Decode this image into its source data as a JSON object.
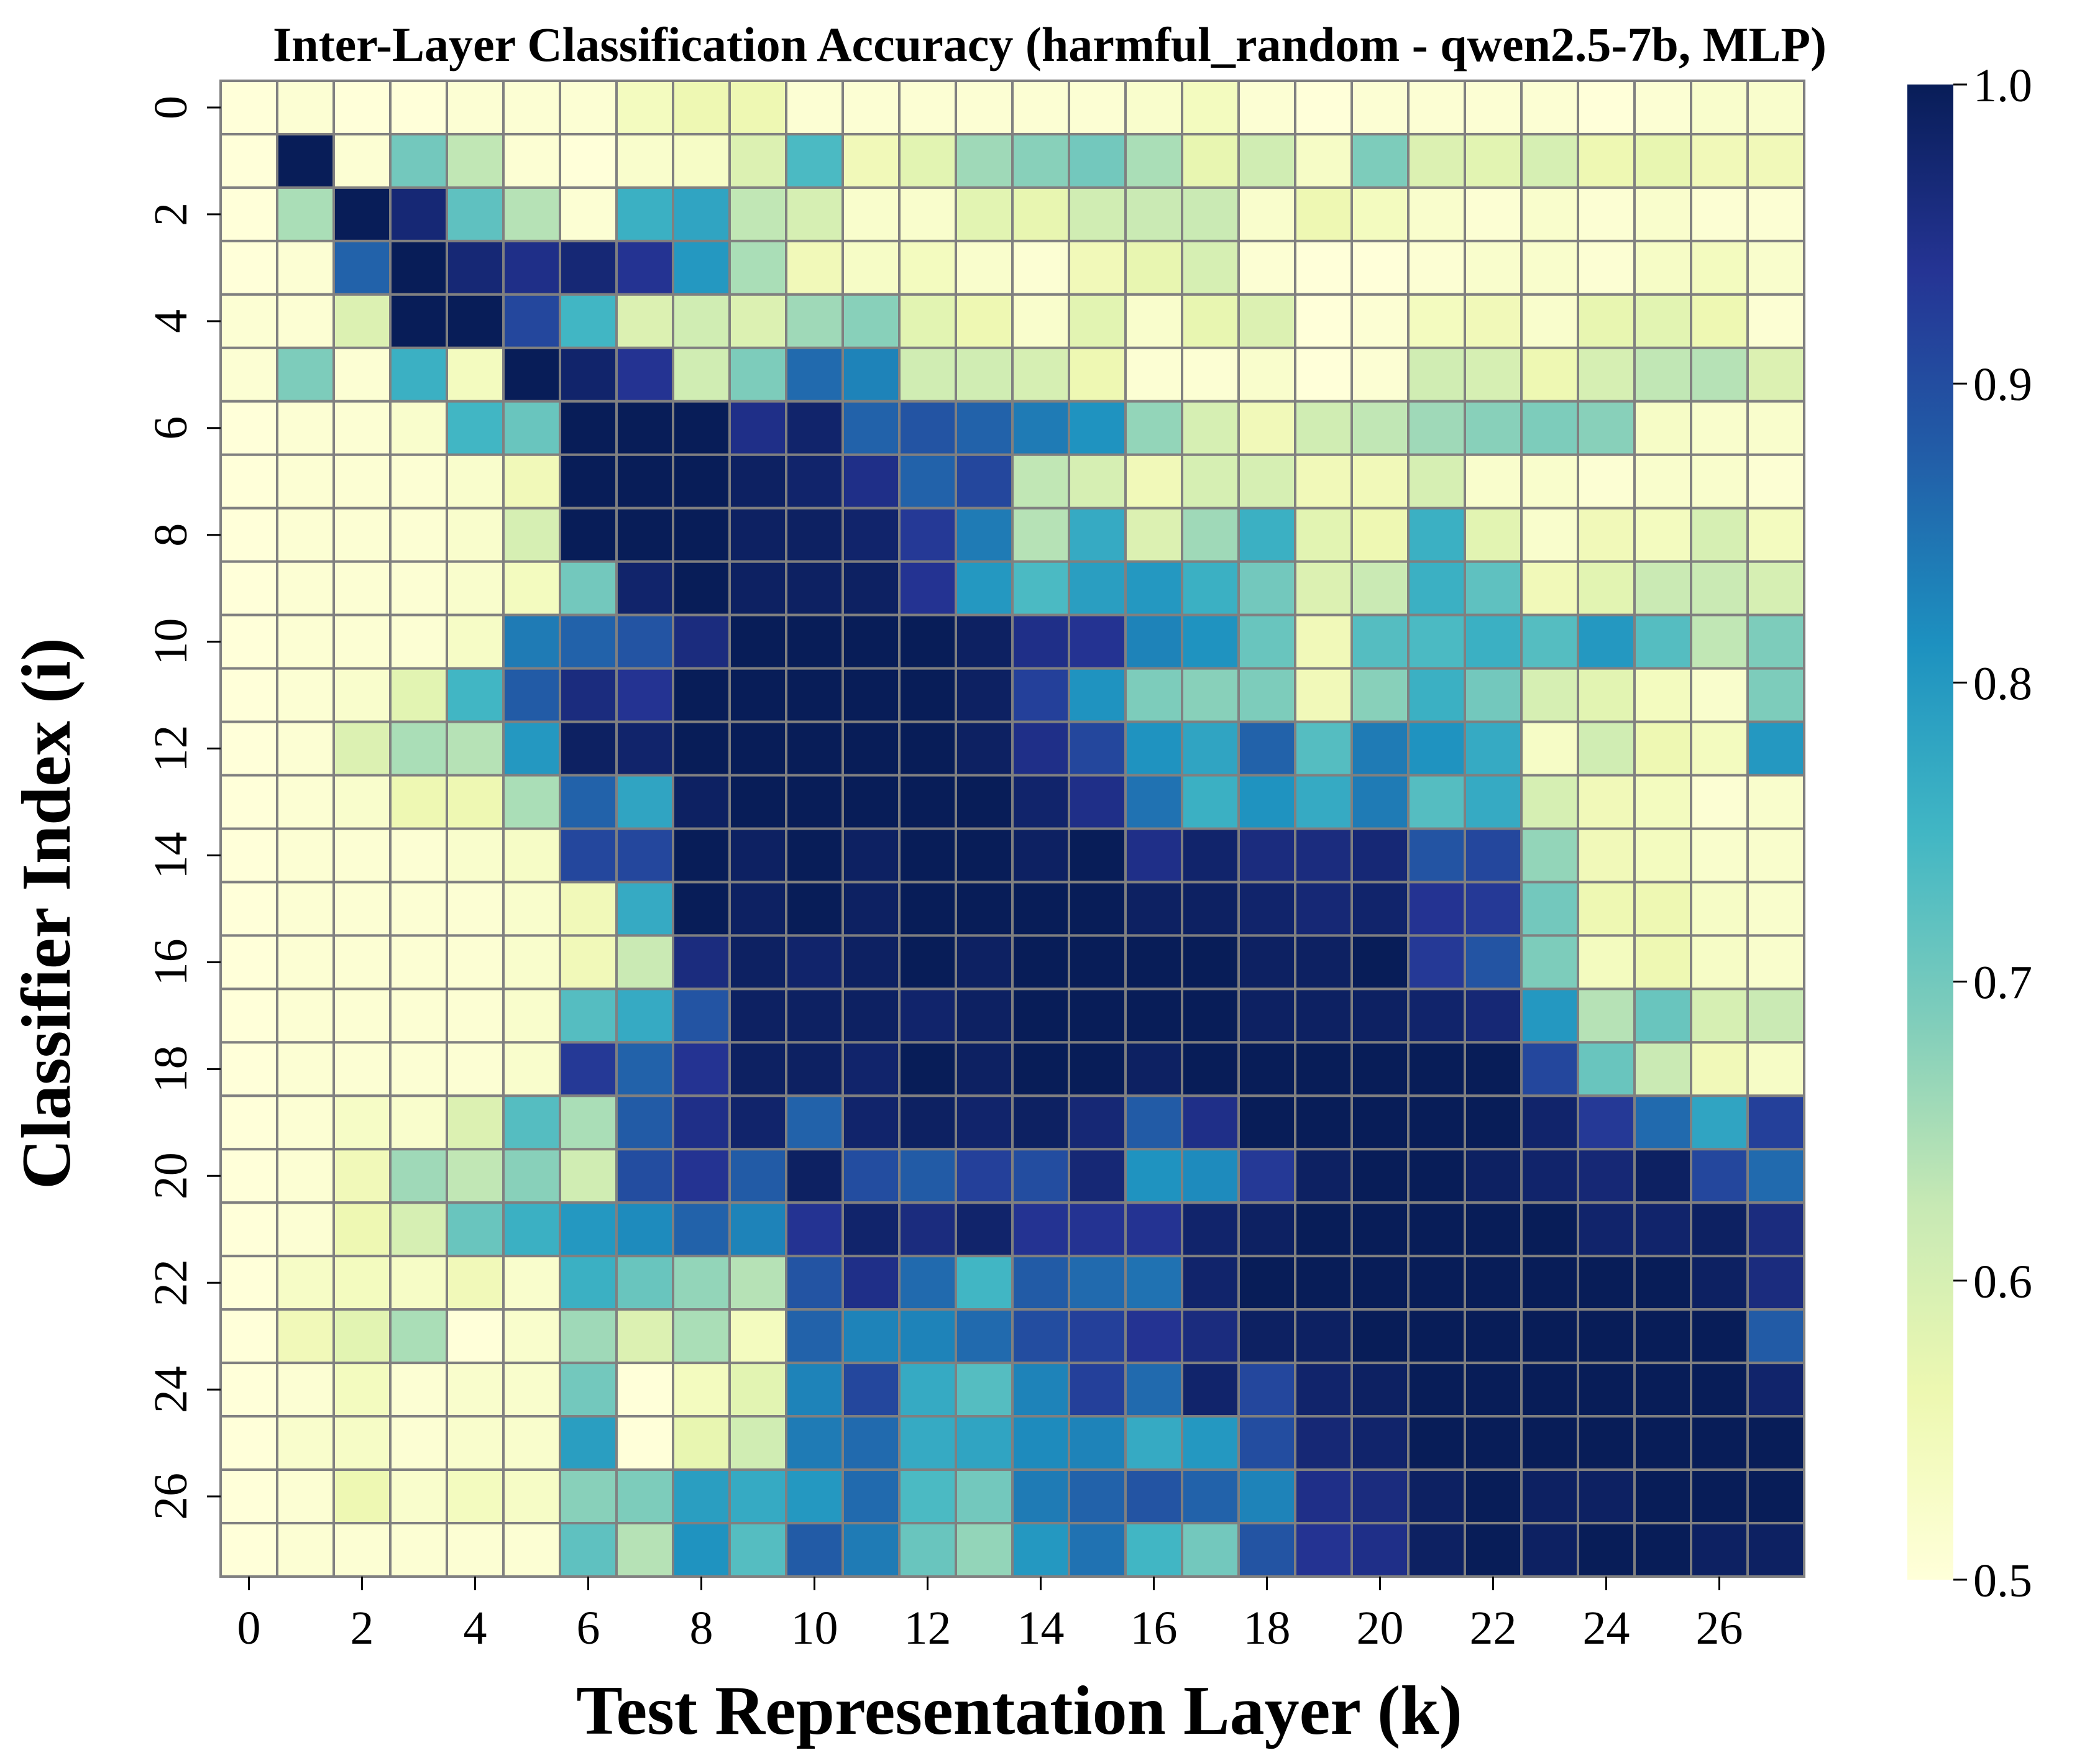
{
  "chart_data": {
    "type": "heatmap",
    "title": "Inter-Layer Classification Accuracy (harmful_random - qwen2.5-7b, MLP)",
    "xlabel": "Test Representation Layer (k)",
    "ylabel": "Classifier Index (i)",
    "x_tick_labels": [
      "0",
      "2",
      "4",
      "6",
      "8",
      "10",
      "12",
      "14",
      "16",
      "18",
      "20",
      "22",
      "24",
      "26"
    ],
    "y_tick_labels": [
      "0",
      "2",
      "4",
      "6",
      "8",
      "10",
      "12",
      "14",
      "16",
      "18",
      "20",
      "22",
      "24",
      "26"
    ],
    "colorbar": {
      "min": 0.5,
      "max": 1.0,
      "tick_labels": [
        "0.5",
        "0.6",
        "0.7",
        "0.8",
        "0.9",
        "1.0"
      ],
      "colormap": "YlGnBu"
    },
    "grid_line_color": "#808080",
    "values": [
      [
        0.5,
        0.51,
        0.5,
        0.5,
        0.51,
        0.51,
        0.51,
        0.54,
        0.56,
        0.56,
        0.51,
        0.51,
        0.51,
        0.51,
        0.51,
        0.51,
        0.52,
        0.54,
        0.51,
        0.5,
        0.51,
        0.51,
        0.51,
        0.51,
        0.5,
        0.51,
        0.52,
        0.52
      ],
      [
        0.5,
        1.0,
        0.51,
        0.7,
        0.63,
        0.51,
        0.5,
        0.52,
        0.53,
        0.59,
        0.74,
        0.55,
        0.58,
        0.66,
        0.68,
        0.7,
        0.65,
        0.57,
        0.61,
        0.53,
        0.69,
        0.59,
        0.58,
        0.6,
        0.56,
        0.57,
        0.55,
        0.55
      ],
      [
        0.5,
        0.65,
        1.0,
        0.97,
        0.72,
        0.64,
        0.51,
        0.76,
        0.78,
        0.63,
        0.6,
        0.52,
        0.52,
        0.58,
        0.57,
        0.61,
        0.62,
        0.62,
        0.52,
        0.56,
        0.54,
        0.52,
        0.51,
        0.52,
        0.51,
        0.52,
        0.51,
        0.51
      ],
      [
        0.5,
        0.51,
        0.87,
        1.0,
        0.97,
        0.95,
        0.97,
        0.94,
        0.8,
        0.65,
        0.55,
        0.53,
        0.54,
        0.52,
        0.51,
        0.55,
        0.57,
        0.6,
        0.51,
        0.5,
        0.5,
        0.51,
        0.52,
        0.52,
        0.51,
        0.53,
        0.54,
        0.52
      ],
      [
        0.51,
        0.51,
        0.59,
        1.0,
        1.0,
        0.91,
        0.75,
        0.59,
        0.61,
        0.59,
        0.66,
        0.68,
        0.58,
        0.56,
        0.52,
        0.58,
        0.52,
        0.57,
        0.59,
        0.5,
        0.51,
        0.54,
        0.55,
        0.52,
        0.57,
        0.58,
        0.56,
        0.51
      ],
      [
        0.51,
        0.69,
        0.51,
        0.76,
        0.54,
        1.0,
        0.98,
        0.94,
        0.61,
        0.69,
        0.86,
        0.83,
        0.61,
        0.61,
        0.6,
        0.56,
        0.51,
        0.51,
        0.52,
        0.5,
        0.51,
        0.61,
        0.6,
        0.56,
        0.6,
        0.63,
        0.64,
        0.59
      ],
      [
        0.5,
        0.51,
        0.51,
        0.52,
        0.75,
        0.71,
        1.0,
        1.0,
        1.0,
        0.95,
        0.98,
        0.87,
        0.89,
        0.87,
        0.84,
        0.81,
        0.67,
        0.6,
        0.55,
        0.61,
        0.63,
        0.66,
        0.68,
        0.69,
        0.68,
        0.53,
        0.52,
        0.52
      ],
      [
        0.5,
        0.51,
        0.51,
        0.51,
        0.52,
        0.55,
        1.0,
        1.0,
        1.0,
        0.99,
        0.98,
        0.95,
        0.87,
        0.91,
        0.63,
        0.6,
        0.55,
        0.6,
        0.6,
        0.55,
        0.55,
        0.6,
        0.52,
        0.52,
        0.51,
        0.52,
        0.52,
        0.51
      ],
      [
        0.5,
        0.51,
        0.51,
        0.51,
        0.52,
        0.6,
        1.0,
        1.0,
        1.0,
        0.99,
        0.99,
        0.98,
        0.93,
        0.84,
        0.64,
        0.77,
        0.59,
        0.66,
        0.76,
        0.58,
        0.56,
        0.76,
        0.58,
        0.52,
        0.55,
        0.54,
        0.6,
        0.54
      ],
      [
        0.5,
        0.51,
        0.51,
        0.51,
        0.52,
        0.54,
        0.7,
        0.98,
        1.0,
        0.99,
        0.99,
        0.99,
        0.94,
        0.8,
        0.74,
        0.79,
        0.8,
        0.76,
        0.7,
        0.59,
        0.62,
        0.76,
        0.72,
        0.55,
        0.58,
        0.62,
        0.62,
        0.6
      ],
      [
        0.5,
        0.51,
        0.51,
        0.51,
        0.53,
        0.84,
        0.87,
        0.89,
        0.96,
        1.0,
        1.0,
        1.0,
        1.0,
        0.99,
        0.95,
        0.94,
        0.83,
        0.81,
        0.71,
        0.55,
        0.73,
        0.74,
        0.76,
        0.73,
        0.8,
        0.73,
        0.63,
        0.69
      ],
      [
        0.5,
        0.51,
        0.52,
        0.58,
        0.75,
        0.88,
        0.96,
        0.94,
        1.0,
        1.0,
        1.0,
        1.0,
        1.0,
        0.99,
        0.92,
        0.81,
        0.69,
        0.68,
        0.69,
        0.55,
        0.68,
        0.76,
        0.7,
        0.6,
        0.58,
        0.54,
        0.52,
        0.69
      ],
      [
        0.5,
        0.51,
        0.59,
        0.65,
        0.64,
        0.8,
        0.99,
        0.98,
        1.0,
        1.0,
        1.0,
        1.0,
        1.0,
        0.99,
        0.95,
        0.91,
        0.81,
        0.78,
        0.87,
        0.73,
        0.84,
        0.81,
        0.77,
        0.53,
        0.61,
        0.56,
        0.54,
        0.8
      ],
      [
        0.5,
        0.51,
        0.52,
        0.56,
        0.56,
        0.65,
        0.87,
        0.78,
        0.99,
        1.0,
        1.0,
        1.0,
        1.0,
        1.0,
        0.98,
        0.95,
        0.85,
        0.76,
        0.81,
        0.77,
        0.84,
        0.73,
        0.77,
        0.6,
        0.55,
        0.54,
        0.51,
        0.52
      ],
      [
        0.5,
        0.51,
        0.51,
        0.51,
        0.52,
        0.53,
        0.91,
        0.91,
        1.0,
        0.99,
        1.0,
        0.99,
        1.0,
        1.0,
        0.99,
        1.0,
        0.95,
        0.98,
        0.96,
        0.96,
        0.97,
        0.89,
        0.91,
        0.67,
        0.55,
        0.54,
        0.52,
        0.52
      ],
      [
        0.5,
        0.51,
        0.51,
        0.51,
        0.51,
        0.52,
        0.55,
        0.77,
        1.0,
        0.99,
        1.0,
        0.99,
        1.0,
        1.0,
        1.0,
        1.0,
        0.99,
        0.99,
        0.98,
        0.97,
        0.98,
        0.94,
        0.93,
        0.7,
        0.56,
        0.56,
        0.53,
        0.52
      ],
      [
        0.5,
        0.51,
        0.51,
        0.51,
        0.51,
        0.52,
        0.55,
        0.62,
        0.96,
        0.99,
        0.98,
        0.99,
        1.0,
        0.99,
        1.0,
        1.0,
        1.0,
        1.0,
        0.99,
        0.99,
        1.0,
        0.93,
        0.89,
        0.69,
        0.54,
        0.56,
        0.53,
        0.52
      ],
      [
        0.5,
        0.51,
        0.51,
        0.51,
        0.51,
        0.52,
        0.73,
        0.77,
        0.89,
        0.99,
        0.99,
        0.99,
        0.98,
        0.99,
        1.0,
        1.0,
        1.0,
        1.0,
        0.99,
        0.99,
        0.99,
        0.98,
        0.97,
        0.8,
        0.64,
        0.71,
        0.6,
        0.62
      ],
      [
        0.5,
        0.51,
        0.51,
        0.51,
        0.51,
        0.52,
        0.93,
        0.87,
        0.94,
        0.99,
        0.99,
        0.98,
        1.0,
        0.99,
        1.0,
        1.0,
        0.99,
        1.0,
        1.0,
        1.0,
        1.0,
        1.0,
        1.0,
        0.91,
        0.71,
        0.62,
        0.55,
        0.53
      ],
      [
        0.5,
        0.51,
        0.53,
        0.52,
        0.59,
        0.73,
        0.65,
        0.88,
        0.95,
        0.98,
        0.87,
        0.98,
        0.99,
        0.98,
        0.99,
        0.97,
        0.88,
        0.95,
        1.0,
        1.0,
        1.0,
        1.0,
        1.0,
        0.98,
        0.93,
        0.86,
        0.78,
        0.92
      ],
      [
        0.5,
        0.51,
        0.55,
        0.66,
        0.63,
        0.68,
        0.61,
        0.9,
        0.94,
        0.88,
        0.99,
        0.9,
        0.88,
        0.92,
        0.9,
        0.97,
        0.81,
        0.82,
        0.93,
        0.99,
        1.0,
        1.0,
        0.99,
        0.98,
        0.97,
        0.99,
        0.91,
        0.86
      ],
      [
        0.5,
        0.51,
        0.56,
        0.6,
        0.71,
        0.76,
        0.8,
        0.82,
        0.87,
        0.83,
        0.94,
        0.98,
        0.96,
        0.98,
        0.94,
        0.94,
        0.94,
        0.98,
        0.99,
        1.0,
        1.0,
        1.0,
        1.0,
        1.0,
        0.98,
        0.98,
        0.99,
        0.96
      ],
      [
        0.5,
        0.53,
        0.54,
        0.53,
        0.55,
        0.52,
        0.76,
        0.71,
        0.67,
        0.64,
        0.89,
        0.95,
        0.86,
        0.75,
        0.88,
        0.86,
        0.85,
        0.98,
        1.0,
        1.0,
        1.0,
        1.0,
        1.0,
        1.0,
        1.0,
        1.0,
        0.99,
        0.96
      ],
      [
        0.5,
        0.55,
        0.58,
        0.65,
        0.5,
        0.52,
        0.66,
        0.59,
        0.65,
        0.54,
        0.87,
        0.83,
        0.83,
        0.86,
        0.9,
        0.92,
        0.94,
        0.96,
        0.99,
        0.99,
        1.0,
        1.0,
        1.0,
        1.0,
        1.0,
        1.0,
        1.0,
        0.88
      ],
      [
        0.5,
        0.51,
        0.54,
        0.51,
        0.52,
        0.52,
        0.7,
        0.5,
        0.54,
        0.58,
        0.83,
        0.91,
        0.77,
        0.73,
        0.83,
        0.92,
        0.86,
        0.98,
        0.91,
        0.98,
        0.99,
        1.0,
        1.0,
        1.0,
        1.0,
        1.0,
        1.0,
        0.98
      ],
      [
        0.5,
        0.52,
        0.53,
        0.51,
        0.52,
        0.52,
        0.79,
        0.5,
        0.57,
        0.61,
        0.84,
        0.86,
        0.77,
        0.78,
        0.82,
        0.83,
        0.77,
        0.8,
        0.9,
        0.97,
        0.98,
        1.0,
        1.0,
        1.0,
        1.0,
        1.0,
        1.0,
        1.0
      ],
      [
        0.5,
        0.51,
        0.56,
        0.52,
        0.54,
        0.53,
        0.68,
        0.69,
        0.79,
        0.77,
        0.8,
        0.86,
        0.74,
        0.7,
        0.84,
        0.87,
        0.89,
        0.87,
        0.83,
        0.95,
        0.96,
        0.99,
        1.0,
        0.99,
        0.99,
        1.0,
        1.0,
        1.0
      ],
      [
        0.5,
        0.51,
        0.51,
        0.51,
        0.51,
        0.51,
        0.72,
        0.64,
        0.81,
        0.73,
        0.88,
        0.84,
        0.71,
        0.67,
        0.8,
        0.85,
        0.75,
        0.7,
        0.89,
        0.94,
        0.95,
        0.99,
        1.0,
        0.99,
        1.0,
        1.0,
        0.99,
        0.99
      ]
    ]
  }
}
